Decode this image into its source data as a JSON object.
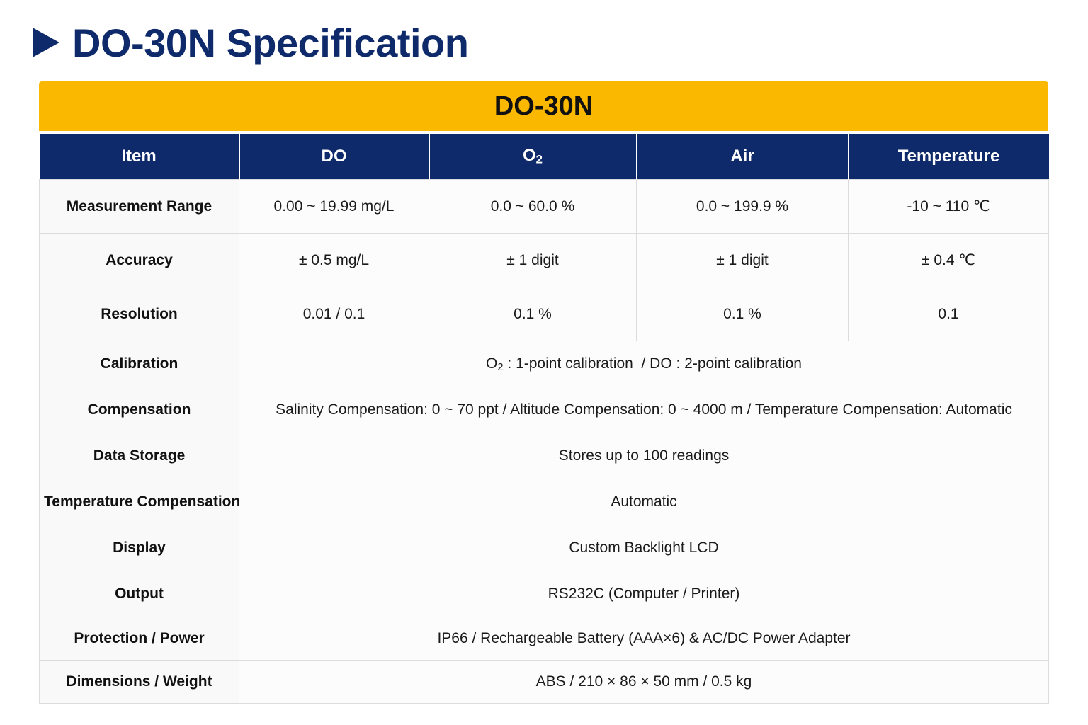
{
  "header": {
    "title": "DO-30N Specification"
  },
  "banner": {
    "model": "DO-30N"
  },
  "columns": {
    "item": "Item",
    "do": "DO",
    "o2_main": "O",
    "o2_sub": "2",
    "air": "Air",
    "temperature": "Temperature"
  },
  "rows": {
    "measurement_range": {
      "label": "Measurement Range",
      "do": "0.00 ~ 19.99 mg/L",
      "o2": "0.0 ~ 60.0 %",
      "air": "0.0 ~ 199.9 %",
      "temperature": "-10 ~ 110 ℃"
    },
    "accuracy": {
      "label": "Accuracy",
      "do": "± 0.5 mg/L",
      "o2": "± 1 digit",
      "air": "± 1 digit",
      "temperature": "± 0.4 ℃"
    },
    "resolution": {
      "label": "Resolution",
      "do": "0.01 / 0.1",
      "o2": "0.1 %",
      "air": "0.1 %",
      "temperature": "0.1"
    },
    "calibration": {
      "label": "Calibration",
      "value_prefix": "O",
      "value_sub": "2",
      "value_rest": " : 1-point calibration  / DO : 2-point calibration"
    },
    "compensation": {
      "label": "Compensation",
      "value": "Salinity Compensation: 0 ~ 70 ppt / Altitude Compensation: 0 ~ 4000 m / Temperature Compensation: Automatic"
    },
    "data_storage": {
      "label": "Data Storage",
      "value": "Stores up to 100 readings"
    },
    "temperature_compensation": {
      "label": "Temperature Compensation",
      "value": "Automatic"
    },
    "display": {
      "label": "Display",
      "value": "Custom Backlight LCD"
    },
    "output": {
      "label": "Output",
      "value": "RS232C (Computer / Printer)"
    },
    "protection_power": {
      "label": "Protection / Power",
      "value": "IP66 / Rechargeable Battery (AAA×6) & AC/DC Power Adapter"
    },
    "dimensions_weight": {
      "label": "Dimensions / Weight",
      "value": "ABS / 210 × 86 × 50 mm / 0.5 kg"
    }
  },
  "colors": {
    "title_navy": "#0e2a6b",
    "banner_yellow": "#fbb800",
    "header_navy": "#0e2a6b",
    "grid_line": "#dcdcdc"
  }
}
